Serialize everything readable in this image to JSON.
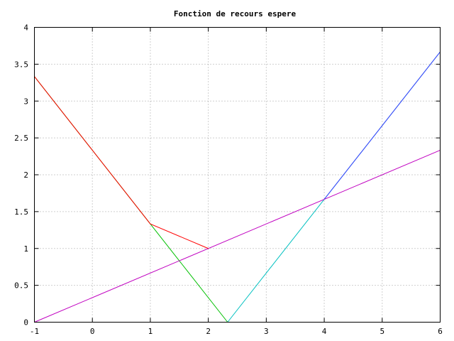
{
  "chart_data": {
    "type": "line",
    "title": "Fonction de recours espere",
    "xlabel": "",
    "ylabel": "",
    "xlim": [
      -1,
      6
    ],
    "ylim": [
      0,
      4
    ],
    "grid": true,
    "x_ticks": [
      -1,
      0,
      1,
      2,
      3,
      4,
      5,
      6
    ],
    "x_tick_labels": [
      "-1",
      "0",
      "1",
      "2",
      "3",
      "4",
      "5",
      "6"
    ],
    "y_ticks": [
      0,
      0.5,
      1,
      1.5,
      2,
      2.5,
      3,
      3.5,
      4
    ],
    "y_tick_labels": [
      "0",
      "0.5",
      "1",
      "1.5",
      "2",
      "2.5",
      "3",
      "3.5",
      "4"
    ],
    "series": [
      {
        "color": "#00c000",
        "x": [
          -1,
          2.333
        ],
        "y": [
          3.333,
          0
        ]
      },
      {
        "color": "#00c0c0",
        "x": [
          2.333,
          6
        ],
        "y": [
          0,
          3.667
        ]
      },
      {
        "color": "#c000c0",
        "x": [
          -1,
          6
        ],
        "y": [
          0,
          2.333
        ]
      },
      {
        "color": "#ff0000",
        "x": [
          -1,
          1,
          2
        ],
        "y": [
          3.333,
          1.333,
          1
        ]
      },
      {
        "color": "#4040ff",
        "x": [
          4,
          6
        ],
        "y": [
          1.667,
          3.667
        ]
      }
    ]
  }
}
